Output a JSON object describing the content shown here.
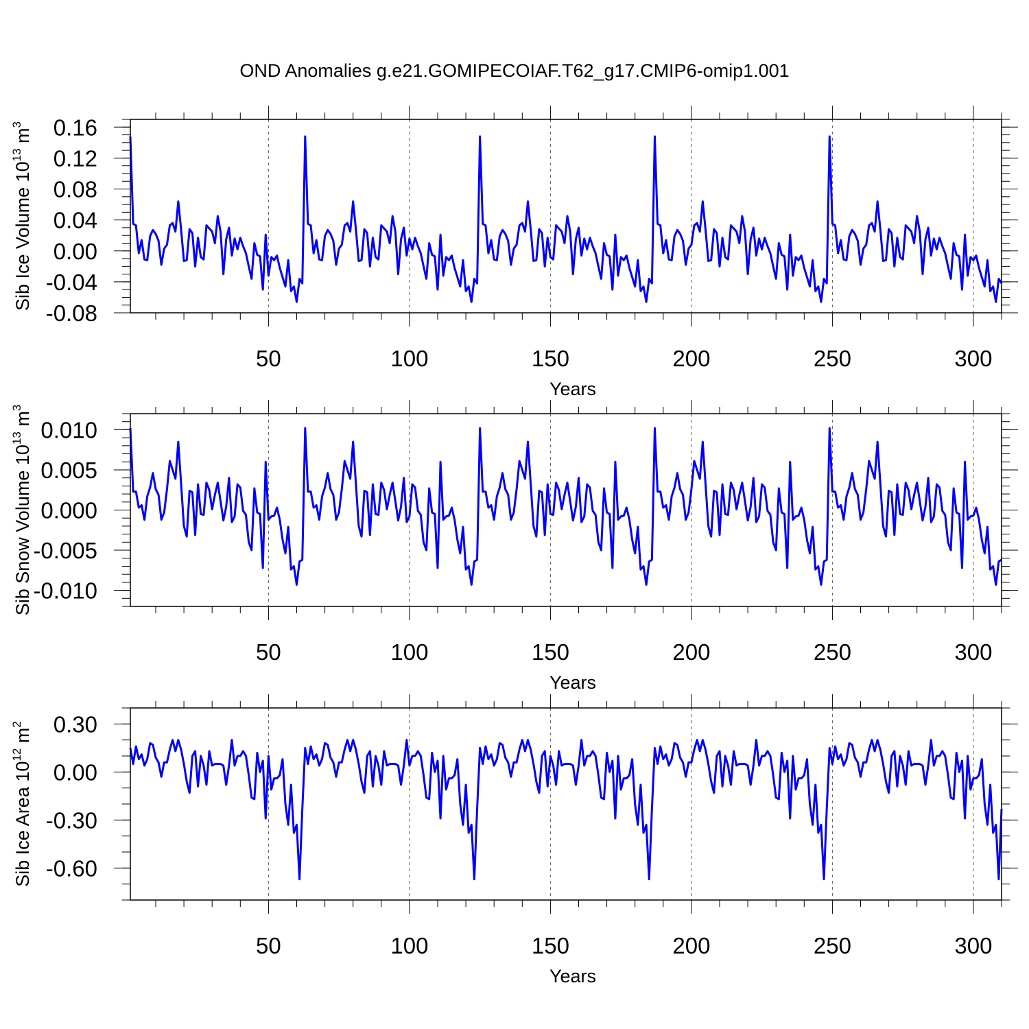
{
  "title": "OND Anomalies g.e21.GOMIPECOIAF.T62_g17.CMIP6-omip1.001",
  "colors": {
    "line": "#0000ff",
    "axis": "#000000",
    "grid": "#555555"
  },
  "chart_data": [
    {
      "type": "line",
      "name": "Sib Ice Volume",
      "ylabel_main": "Sib Ice Volume 10",
      "ylabel_exp1": "13",
      "ylabel_unit": " m",
      "ylabel_exp2": "3",
      "xlabel": "Years",
      "xlim": [
        1,
        310
      ],
      "ylim": [
        -0.08,
        0.17
      ],
      "x_ticks": [
        50,
        100,
        150,
        200,
        250,
        300
      ],
      "x_tick_labels": [
        "50",
        "100",
        "150",
        "200",
        "250",
        "300"
      ],
      "y_ticks": [
        -0.08,
        -0.04,
        0.0,
        0.04,
        0.08,
        0.12,
        0.16
      ],
      "y_tick_labels": [
        "-0.08",
        "-0.04",
        "0.00",
        "0.04",
        "0.08",
        "0.12",
        "0.16"
      ],
      "y_minor_step": 0.01,
      "grid": "dashed vertical at x ticks",
      "x_start": 1,
      "cycle_length": 62,
      "values": [
        0.148,
        0.035,
        0.033,
        -0.003,
        0.014,
        -0.011,
        -0.012,
        0.019,
        0.027,
        0.022,
        0.013,
        -0.018,
        0.003,
        0.008,
        0.033,
        0.036,
        0.025,
        0.064,
        0.028,
        -0.013,
        -0.012,
        0.028,
        0.023,
        -0.02,
        0.017,
        -0.008,
        -0.011,
        0.033,
        0.029,
        0.025,
        0.01,
        0.045,
        0.025,
        -0.03,
        0.015,
        0.03,
        -0.006,
        0.016,
        0.002,
        0.017,
        0.006,
        -0.003,
        -0.02,
        -0.036,
        0.01,
        -0.005,
        -0.007,
        -0.05,
        0.021,
        -0.032,
        -0.008,
        -0.012,
        -0.006,
        -0.022,
        -0.034,
        -0.046,
        -0.012,
        -0.052,
        -0.046,
        -0.066,
        -0.036,
        -0.042
      ]
    },
    {
      "type": "line",
      "name": "Sib Snow Volume",
      "ylabel_main": "Sib Snow Volume 10",
      "ylabel_exp1": "13",
      "ylabel_unit": " m",
      "ylabel_exp2": "3",
      "xlabel": "Years",
      "xlim": [
        1,
        310
      ],
      "ylim": [
        -0.012,
        0.012
      ],
      "x_ticks": [
        50,
        100,
        150,
        200,
        250,
        300
      ],
      "x_tick_labels": [
        "50",
        "100",
        "150",
        "200",
        "250",
        "300"
      ],
      "y_ticks": [
        -0.01,
        -0.005,
        0.0,
        0.005,
        0.01
      ],
      "y_tick_labels": [
        "-0.010",
        "-0.005",
        "0.000",
        "0.005",
        "0.010"
      ],
      "y_minor_step": 0.001,
      "grid": "dashed vertical at x ticks",
      "x_start": 1,
      "cycle_length": 62,
      "values": [
        0.0102,
        0.0023,
        0.0023,
        0.0003,
        0.0006,
        -0.0012,
        0.0017,
        0.0028,
        0.0046,
        0.0026,
        0.0019,
        -0.0012,
        -0.0003,
        0.0026,
        0.0061,
        0.005,
        0.0039,
        0.0085,
        0.0033,
        -0.002,
        -0.0033,
        0.0024,
        0.0022,
        -0.0031,
        0.0032,
        -0.0005,
        -0.0006,
        0.0034,
        0.0025,
        0.0001,
        0.0019,
        0.0034,
        0.0011,
        -0.0013,
        0.0004,
        0.004,
        -0.0015,
        -0.0008,
        0.0032,
        0.0028,
        -0.0001,
        -0.0006,
        -0.004,
        -0.005,
        0.0027,
        -0.0003,
        -0.0005,
        -0.0072,
        0.006,
        -0.0012,
        -0.0008,
        -0.0007,
        0.0003,
        -0.0012,
        -0.0037,
        -0.0054,
        -0.0021,
        -0.0074,
        -0.007,
        -0.0093,
        -0.0064,
        -0.0062
      ]
    },
    {
      "type": "line",
      "name": "Sib Ice Area",
      "ylabel_main": "Sib Ice Area 10",
      "ylabel_exp1": "12",
      "ylabel_unit": " m",
      "ylabel_exp2": "2",
      "xlabel": "Years",
      "xlim": [
        1,
        310
      ],
      "ylim": [
        -0.8,
        0.4
      ],
      "x_ticks": [
        50,
        100,
        150,
        200,
        250,
        300
      ],
      "x_tick_labels": [
        "50",
        "100",
        "150",
        "200",
        "250",
        "300"
      ],
      "y_ticks": [
        -0.6,
        -0.3,
        0.0,
        0.3
      ],
      "y_tick_labels": [
        "-0.60",
        "-0.30",
        "0.00",
        "0.30"
      ],
      "y_minor_step": 0.1,
      "grid": "dashed vertical at x ticks",
      "x_start": 1,
      "cycle_length": 62,
      "values": [
        0.15,
        0.05,
        0.16,
        0.08,
        0.11,
        0.04,
        0.08,
        0.18,
        0.17,
        0.09,
        0.06,
        -0.03,
        0.06,
        0.06,
        0.14,
        0.2,
        0.13,
        0.2,
        0.14,
        0.05,
        -0.06,
        -0.13,
        0.1,
        0.13,
        -0.09,
        0.1,
        0.04,
        -0.08,
        0.13,
        0.04,
        0.05,
        0.05,
        0.05,
        0.04,
        -0.08,
        0.04,
        0.2,
        0.04,
        0.1,
        0.1,
        0.13,
        0.1,
        -0.02,
        -0.16,
        -0.17,
        0.12,
        0.0,
        0.07,
        -0.29,
        0.1,
        -0.11,
        -0.04,
        -0.04,
        -0.02,
        0.08,
        -0.2,
        -0.33,
        -0.08,
        -0.38,
        -0.33,
        -0.67,
        -0.23
      ]
    }
  ]
}
